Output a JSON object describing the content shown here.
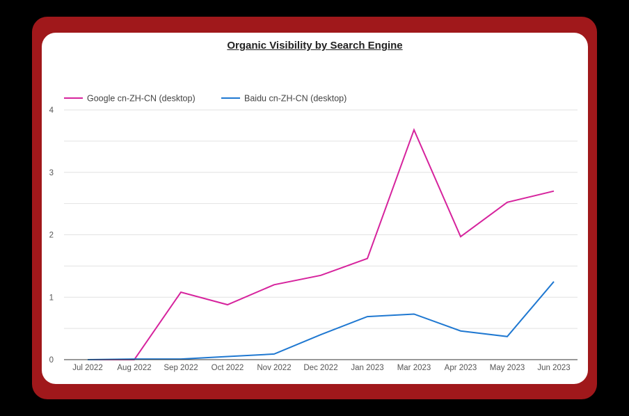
{
  "chart_data": {
    "type": "line",
    "title": "Organic Visibility by Search Engine",
    "xlabel": "",
    "ylabel": "",
    "ylim": [
      0,
      4
    ],
    "yticks": [
      0,
      1,
      2,
      3,
      4
    ],
    "grid": true,
    "legend_position": "top-left",
    "categories": [
      "Jul 2022",
      "Aug 2022",
      "Sep 2022",
      "Oct 2022",
      "Nov 2022",
      "Dec 2022",
      "Jan 2023",
      "Mar 2023",
      "Apr 2023",
      "May 2023",
      "Jun 2023"
    ],
    "series": [
      {
        "name": "Google cn-ZH-CN (desktop)",
        "color": "#d6239d",
        "values": [
          0,
          0,
          1.08,
          0.88,
          1.2,
          1.35,
          1.62,
          3.68,
          1.97,
          2.52,
          2.7
        ]
      },
      {
        "name": "Baidu cn-ZH-CN (desktop)",
        "color": "#1f78d1",
        "values": [
          0,
          0.01,
          0.01,
          0.05,
          0.09,
          0.4,
          0.69,
          0.73,
          0.46,
          0.37,
          1.25
        ]
      }
    ]
  },
  "colors": {
    "frame": "#a0181b",
    "background": "#000000",
    "card": "#ffffff"
  }
}
